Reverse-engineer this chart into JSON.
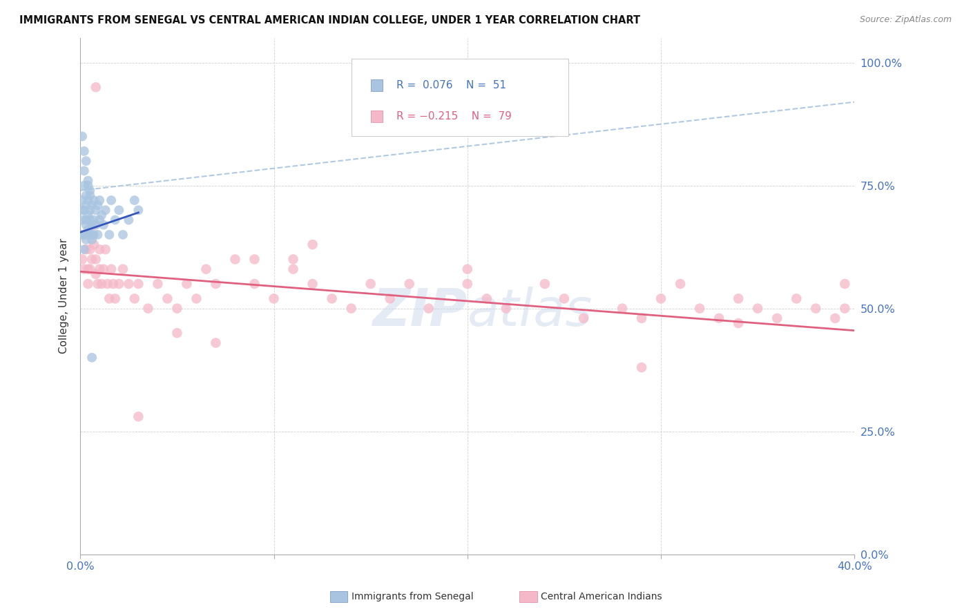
{
  "title": "IMMIGRANTS FROM SENEGAL VS CENTRAL AMERICAN INDIAN COLLEGE, UNDER 1 YEAR CORRELATION CHART",
  "source": "Source: ZipAtlas.com",
  "ylabel": "College, Under 1 year",
  "yaxis_label_color": "#4472c4",
  "xaxis_label_color": "#4472c4",
  "background_color": "#ffffff",
  "grid_color": "#cccccc",
  "scatter_color_blue": "#a8c4e0",
  "scatter_color_pink": "#f4b8c8",
  "line_color_blue": "#3355bb",
  "line_color_pink": "#e06080",
  "dashed_line_color": "#a8c4e0",
  "legend_label_blue": "Immigrants from Senegal",
  "legend_label_pink": "Central American Indians",
  "legend_R1": "R =  0.076",
  "legend_N1": "N =  51",
  "legend_R2": "R = -0.215",
  "legend_N2": "N =  79",
  "xlim": [
    0.0,
    0.4
  ],
  "ylim": [
    0.0,
    1.05
  ],
  "senegal_x": [
    0.001,
    0.001,
    0.001,
    0.001,
    0.002,
    0.002,
    0.002,
    0.002,
    0.002,
    0.003,
    0.003,
    0.003,
    0.003,
    0.003,
    0.004,
    0.004,
    0.004,
    0.004,
    0.005,
    0.005,
    0.005,
    0.005,
    0.006,
    0.006,
    0.006,
    0.007,
    0.007,
    0.007,
    0.008,
    0.008,
    0.009,
    0.009,
    0.01,
    0.01,
    0.011,
    0.012,
    0.013,
    0.015,
    0.016,
    0.018,
    0.02,
    0.022,
    0.025,
    0.028,
    0.03,
    0.005,
    0.003,
    0.001,
    0.002,
    0.004,
    0.006
  ],
  "senegal_y": [
    0.68,
    0.72,
    0.65,
    0.7,
    0.75,
    0.78,
    0.65,
    0.62,
    0.7,
    0.73,
    0.67,
    0.71,
    0.64,
    0.68,
    0.72,
    0.69,
    0.75,
    0.66,
    0.68,
    0.73,
    0.65,
    0.7,
    0.67,
    0.64,
    0.71,
    0.68,
    0.72,
    0.65,
    0.7,
    0.67,
    0.71,
    0.65,
    0.68,
    0.72,
    0.69,
    0.67,
    0.7,
    0.65,
    0.72,
    0.68,
    0.7,
    0.65,
    0.68,
    0.72,
    0.7,
    0.74,
    0.8,
    0.85,
    0.82,
    0.76,
    0.4
  ],
  "central_x": [
    0.001,
    0.002,
    0.003,
    0.003,
    0.004,
    0.004,
    0.005,
    0.005,
    0.006,
    0.006,
    0.007,
    0.007,
    0.008,
    0.008,
    0.009,
    0.01,
    0.01,
    0.011,
    0.012,
    0.013,
    0.014,
    0.015,
    0.016,
    0.017,
    0.018,
    0.02,
    0.022,
    0.025,
    0.028,
    0.03,
    0.035,
    0.04,
    0.045,
    0.05,
    0.055,
    0.06,
    0.065,
    0.07,
    0.08,
    0.09,
    0.1,
    0.11,
    0.12,
    0.13,
    0.14,
    0.15,
    0.16,
    0.17,
    0.18,
    0.2,
    0.21,
    0.22,
    0.24,
    0.25,
    0.26,
    0.28,
    0.29,
    0.3,
    0.31,
    0.32,
    0.33,
    0.34,
    0.35,
    0.36,
    0.37,
    0.38,
    0.39,
    0.395,
    0.12,
    0.09,
    0.008,
    0.03,
    0.05,
    0.07,
    0.11,
    0.2,
    0.29,
    0.34,
    0.395
  ],
  "central_y": [
    0.6,
    0.58,
    0.65,
    0.62,
    0.58,
    0.55,
    0.62,
    0.58,
    0.65,
    0.6,
    0.67,
    0.63,
    0.6,
    0.57,
    0.55,
    0.58,
    0.62,
    0.55,
    0.58,
    0.62,
    0.55,
    0.52,
    0.58,
    0.55,
    0.52,
    0.55,
    0.58,
    0.55,
    0.52,
    0.55,
    0.5,
    0.55,
    0.52,
    0.5,
    0.55,
    0.52,
    0.58,
    0.55,
    0.6,
    0.55,
    0.52,
    0.58,
    0.55,
    0.52,
    0.5,
    0.55,
    0.52,
    0.55,
    0.5,
    0.55,
    0.52,
    0.5,
    0.55,
    0.52,
    0.48,
    0.5,
    0.48,
    0.52,
    0.55,
    0.5,
    0.48,
    0.52,
    0.5,
    0.48,
    0.52,
    0.5,
    0.48,
    0.55,
    0.63,
    0.6,
    0.95,
    0.28,
    0.45,
    0.43,
    0.6,
    0.58,
    0.38,
    0.47,
    0.5
  ],
  "senegal_line_x": [
    0.0,
    0.03
  ],
  "senegal_line_y": [
    0.655,
    0.695
  ],
  "dashed_line_x": [
    0.0,
    0.4
  ],
  "dashed_line_y": [
    0.74,
    0.92
  ],
  "central_line_x": [
    0.0,
    0.4
  ],
  "central_line_y": [
    0.575,
    0.455
  ]
}
